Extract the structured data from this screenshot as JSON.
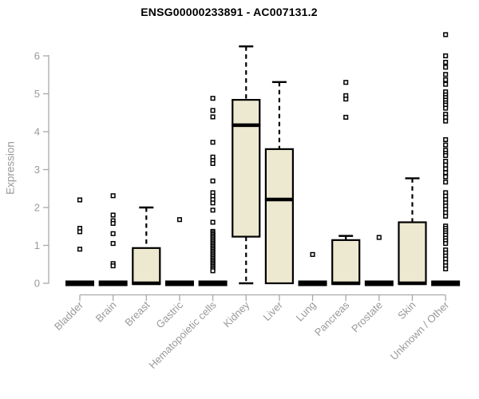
{
  "header": {
    "title": "ENSG00000233891 - AC007131.2"
  },
  "chart_data": {
    "type": "boxplot",
    "title": "ENSG00000233891 - AC007131.2",
    "xlabel": "",
    "ylabel": "Expression",
    "ylim": [
      0,
      6.6
    ],
    "yticks": [
      0,
      1,
      2,
      3,
      4,
      5,
      6
    ],
    "grid": false,
    "legend": "none",
    "categories": [
      "Bladder",
      "Brain",
      "Breast",
      "Gastric",
      "Hematopoietic cells",
      "Kidney",
      "Liver",
      "Lung",
      "Pancreas",
      "Prostate",
      "Skin",
      "Unknown / Other"
    ],
    "boxes": [
      {
        "category": "Bladder",
        "whisker_low": 0,
        "q1": 0,
        "median": 0,
        "q3": 0,
        "whisker_high": 0,
        "outliers": [
          2.2,
          1.45,
          1.36,
          0.9
        ]
      },
      {
        "category": "Brain",
        "whisker_low": 0,
        "q1": 0,
        "median": 0,
        "q3": 0,
        "whisker_high": 0,
        "outliers": [
          2.31,
          1.8,
          1.65,
          1.58,
          1.31,
          1.05,
          0.52,
          0.46
        ]
      },
      {
        "category": "Breast",
        "whisker_low": 0,
        "q1": 0,
        "median": 0,
        "q3": 0.93,
        "whisker_high": 2.0,
        "outliers": []
      },
      {
        "category": "Gastric",
        "whisker_low": 0,
        "q1": 0,
        "median": 0,
        "q3": 0,
        "whisker_high": 0,
        "outliers": [
          1.68
        ]
      },
      {
        "category": "Hematopoietic cells",
        "whisker_low": 0,
        "q1": 0,
        "median": 0,
        "q3": 0,
        "whisker_high": 0,
        "outliers": [
          4.88,
          4.56,
          4.39,
          3.72,
          3.33,
          3.24,
          3.16,
          2.7,
          2.39,
          2.3,
          2.21,
          2.12,
          1.93,
          1.61,
          1.37,
          1.33,
          1.29,
          1.25,
          1.21,
          1.17,
          1.13,
          1.09,
          1.05,
          1.01,
          0.97,
          0.93,
          0.89,
          0.85,
          0.81,
          0.77,
          0.73,
          0.69,
          0.65,
          0.61,
          0.57,
          0.53,
          0.49,
          0.45,
          0.41,
          0.37,
          0.33
        ]
      },
      {
        "category": "Kidney",
        "whisker_low": 0,
        "q1": 1.23,
        "median": 4.17,
        "q3": 4.84,
        "whisker_high": 6.25,
        "outliers": []
      },
      {
        "category": "Liver",
        "whisker_low": 0,
        "q1": 0,
        "median": 2.21,
        "q3": 3.54,
        "whisker_high": 5.31,
        "outliers": []
      },
      {
        "category": "Lung",
        "whisker_low": 0,
        "q1": 0,
        "median": 0,
        "q3": 0,
        "whisker_high": 0,
        "outliers": [
          0.76
        ]
      },
      {
        "category": "Pancreas",
        "whisker_low": 0,
        "q1": 0,
        "median": 0,
        "q3": 1.14,
        "whisker_high": 1.25,
        "outliers": [
          5.3,
          4.95,
          4.86,
          4.38
        ]
      },
      {
        "category": "Prostate",
        "whisker_low": 0,
        "q1": 0,
        "median": 0,
        "q3": 0,
        "whisker_high": 0,
        "outliers": [
          1.21
        ]
      },
      {
        "category": "Skin",
        "whisker_low": 0,
        "q1": 0,
        "median": 0,
        "q3": 1.61,
        "whisker_high": 2.77,
        "outliers": []
      },
      {
        "category": "Unknown / Other",
        "whisker_low": 0,
        "q1": 0,
        "median": 0,
        "q3": 0,
        "whisker_high": 0,
        "outliers": [
          6.56,
          6.0,
          5.83,
          5.7,
          5.51,
          5.37,
          5.25,
          5.05,
          4.97,
          4.9,
          4.83,
          4.76,
          4.7,
          4.62,
          4.46,
          4.38,
          4.28,
          3.79,
          3.65,
          3.51,
          3.43,
          3.37,
          3.22,
          3.12,
          3.02,
          2.92,
          2.81,
          2.67,
          2.39,
          2.3,
          2.21,
          2.12,
          2.04,
          1.95,
          1.86,
          1.77,
          1.51,
          1.45,
          1.39,
          1.33,
          1.27,
          1.19,
          1.12,
          1.05,
          0.88,
          0.8,
          0.72,
          0.64,
          0.55,
          0.46,
          0.38
        ]
      }
    ],
    "colors": {
      "box_fill": "#EDE8D0",
      "box_stroke": "#000000",
      "median": "#000000",
      "outlier_stroke": "#000000",
      "axis": "#A9A9A9",
      "tick_label": "#999998",
      "title": "#000000",
      "background": "#FFFFFF"
    }
  }
}
